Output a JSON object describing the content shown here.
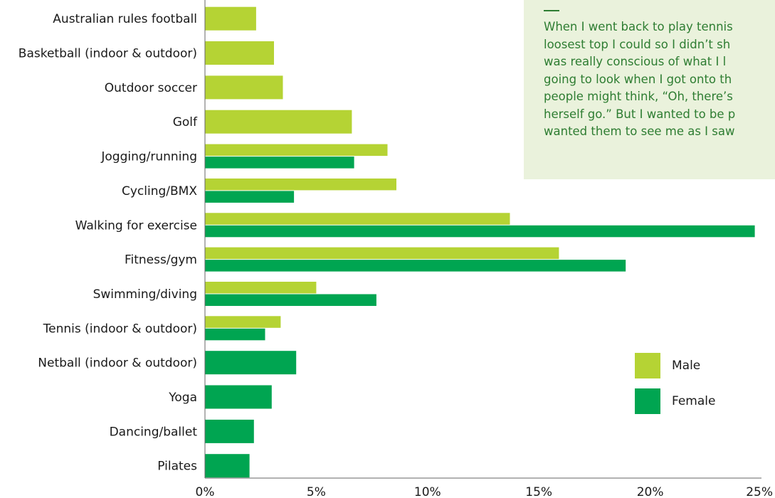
{
  "chart_data": {
    "type": "bar",
    "orientation": "horizontal",
    "categories": [
      "Australian rules football",
      "Basketball (indoor & outdoor)",
      "Outdoor soccer",
      "Golf",
      "Jogging/running",
      "Cycling/BMX",
      "Walking for exercise",
      "Fitness/gym",
      "Swimming/diving",
      "Tennis (indoor & outdoor)",
      "Netball (indoor & outdoor)",
      "Yoga",
      "Dancing/ballet",
      "Pilates"
    ],
    "series": [
      {
        "name": "Male",
        "color": "#b5d334",
        "values": [
          2.3,
          3.1,
          3.5,
          6.6,
          8.2,
          8.6,
          13.7,
          15.9,
          5.0,
          3.4,
          null,
          null,
          null,
          null
        ]
      },
      {
        "name": "Female",
        "color": "#00a551",
        "values": [
          null,
          null,
          null,
          null,
          6.7,
          4.0,
          24.7,
          18.9,
          7.7,
          2.7,
          4.1,
          3.0,
          2.2,
          2.0
        ]
      }
    ],
    "xlim": [
      0,
      25
    ],
    "xticks": [
      "0%",
      "5%",
      "10%",
      "15%",
      "20%",
      "25%"
    ],
    "xlabel": "",
    "ylabel": "",
    "title": "",
    "legend": {
      "placement": "bottom-right"
    },
    "grid": false
  },
  "quote": {
    "lines": [
      "When I went back to play tennis",
      "loosest top I could so I didn’t sh",
      "was really conscious of what I l",
      "going to look when I got onto th",
      "people might think, “Oh, there’s",
      "herself go.” But I wanted to be p",
      "wanted them to see me as I saw"
    ]
  }
}
